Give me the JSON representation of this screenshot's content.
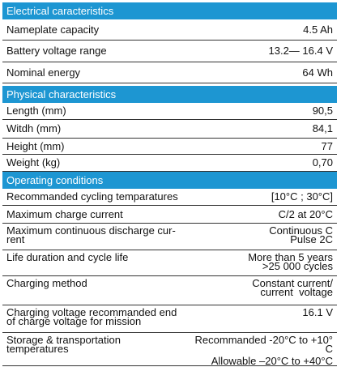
{
  "sections": [
    {
      "title": "Electrical caracteristics",
      "rows": [
        {
          "label": [
            "Nameplate capacity"
          ],
          "value": [
            "4.5 Ah"
          ]
        },
        {
          "label": [
            "Battery voltage range"
          ],
          "value": [
            "13.2— 16.4 V"
          ]
        },
        {
          "label": [
            "Nominal energy"
          ],
          "value": [
            "64 Wh"
          ]
        }
      ]
    },
    {
      "title": "Physical characteristics",
      "rows": [
        {
          "label": [
            "Length (mm)"
          ],
          "value": [
            "90,5"
          ]
        },
        {
          "label": [
            "Witdh (mm)"
          ],
          "value": [
            "84,1"
          ]
        },
        {
          "label": [
            "Height (mm)"
          ],
          "value": [
            "77"
          ]
        },
        {
          "label": [
            "Weight (kg)"
          ],
          "value": [
            "0,70"
          ]
        }
      ]
    },
    {
      "title": "Operating conditions",
      "rows": [
        {
          "label": [
            "Recommanded cycling temparatures"
          ],
          "value": [
            "[10°C ; 30°C]"
          ]
        },
        {
          "label": [
            "Maximum charge current"
          ],
          "value": [
            "C/2 at 20°C"
          ]
        },
        {
          "label": [
            "Maximum continuous discharge cur-",
            "rent"
          ],
          "value": [
            "Continuous C",
            "Pulse 2C"
          ]
        },
        {
          "label": [
            "Life duration and cycle life"
          ],
          "value": [
            "More than 5 years",
            ">25 000 cycles"
          ]
        },
        {
          "label": [
            "Charging method"
          ],
          "value": [
            "Constant current/",
            "current  voltage"
          ]
        },
        {
          "label": [
            "Charging voltage recommanded end",
            "of charge voltage for mission"
          ],
          "value": [
            "16.1 V"
          ]
        },
        {
          "label": [
            "Storage & transportation",
            "temperatures"
          ],
          "value": [
            "Recommanded -20°C to +10°",
            "C",
            "Allowable –20°C to +40°C"
          ]
        }
      ]
    }
  ]
}
